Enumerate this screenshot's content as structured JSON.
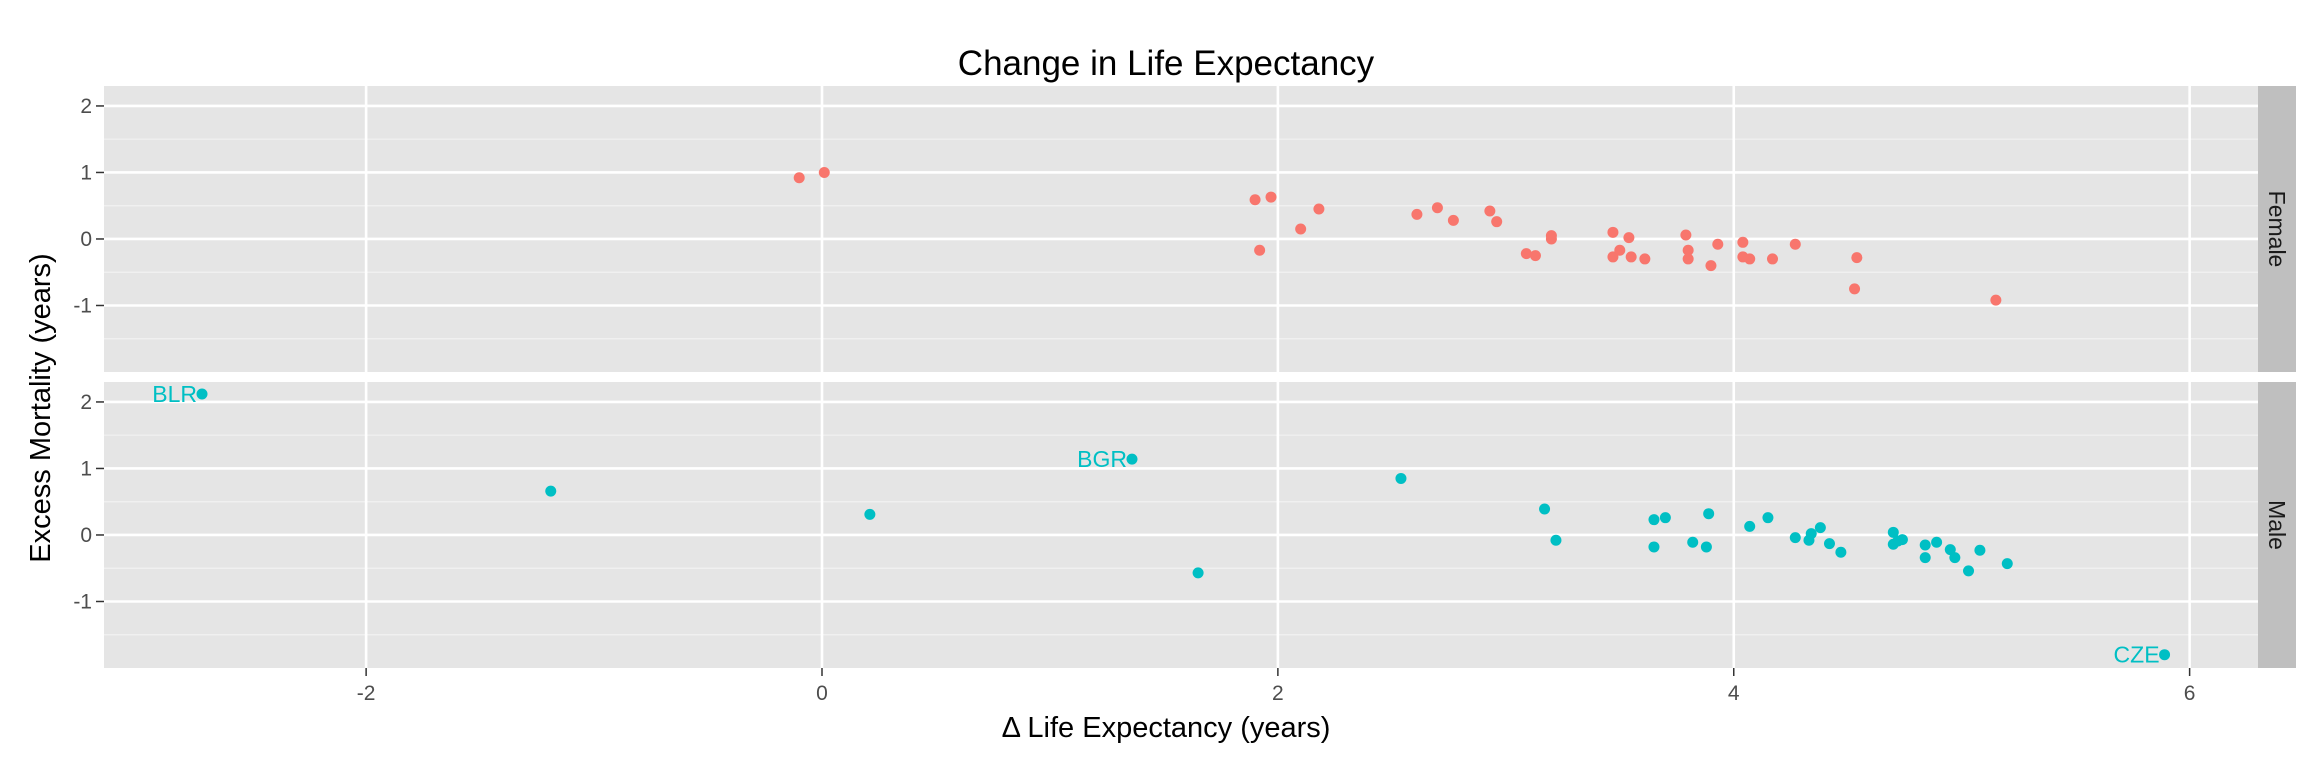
{
  "chart_data": {
    "type": "scatter",
    "title": "Change in Life Expectancy",
    "xlabel": "Δ Life Expectancy (years)",
    "ylabel": "Excess Mortality (years)",
    "xlim": [
      -3.15,
      6.3
    ],
    "ylim": [
      -2.0,
      2.3
    ],
    "x_ticks": [
      -2,
      0,
      2,
      4,
      6
    ],
    "y_ticks": [
      -1,
      0,
      1,
      2
    ],
    "grid": true,
    "facets": [
      "Female",
      "Male"
    ],
    "series": [
      {
        "name": "Female",
        "color": "#F8766D",
        "points": [
          {
            "x": -0.1,
            "y": 0.92
          },
          {
            "x": 0.01,
            "y": 1.0
          },
          {
            "x": 1.9,
            "y": 0.59
          },
          {
            "x": 1.97,
            "y": 0.63
          },
          {
            "x": 1.92,
            "y": -0.17
          },
          {
            "x": 2.1,
            "y": 0.15
          },
          {
            "x": 2.18,
            "y": 0.45
          },
          {
            "x": 2.61,
            "y": 0.37
          },
          {
            "x": 2.7,
            "y": 0.47
          },
          {
            "x": 2.77,
            "y": 0.28
          },
          {
            "x": 2.93,
            "y": 0.42
          },
          {
            "x": 2.96,
            "y": 0.26
          },
          {
            "x": 3.09,
            "y": -0.22
          },
          {
            "x": 3.13,
            "y": -0.25
          },
          {
            "x": 3.2,
            "y": 0.05
          },
          {
            "x": 3.2,
            "y": 0.0
          },
          {
            "x": 3.47,
            "y": 0.1
          },
          {
            "x": 3.47,
            "y": -0.27
          },
          {
            "x": 3.5,
            "y": -0.17
          },
          {
            "x": 3.54,
            "y": 0.02
          },
          {
            "x": 3.55,
            "y": -0.27
          },
          {
            "x": 3.61,
            "y": -0.3
          },
          {
            "x": 3.79,
            "y": 0.06
          },
          {
            "x": 3.8,
            "y": -0.17
          },
          {
            "x": 3.8,
            "y": -0.3
          },
          {
            "x": 3.9,
            "y": -0.4
          },
          {
            "x": 3.93,
            "y": -0.08
          },
          {
            "x": 4.04,
            "y": -0.05
          },
          {
            "x": 4.04,
            "y": -0.27
          },
          {
            "x": 4.07,
            "y": -0.3
          },
          {
            "x": 4.17,
            "y": -0.3
          },
          {
            "x": 4.27,
            "y": -0.08
          },
          {
            "x": 4.53,
            "y": -0.75
          },
          {
            "x": 4.54,
            "y": -0.28
          },
          {
            "x": 5.15,
            "y": -0.92
          }
        ]
      },
      {
        "name": "Male",
        "color": "#00BFC4",
        "points": [
          {
            "x": -2.72,
            "y": 2.12,
            "label": "BLR"
          },
          {
            "x": -1.19,
            "y": 0.66
          },
          {
            "x": 0.21,
            "y": 0.31
          },
          {
            "x": 1.36,
            "y": 1.14,
            "label": "BGR"
          },
          {
            "x": 1.65,
            "y": -0.57
          },
          {
            "x": 2.54,
            "y": 0.85
          },
          {
            "x": 3.17,
            "y": 0.39
          },
          {
            "x": 3.22,
            "y": -0.08
          },
          {
            "x": 3.65,
            "y": 0.23
          },
          {
            "x": 3.65,
            "y": -0.18
          },
          {
            "x": 3.7,
            "y": 0.26
          },
          {
            "x": 3.82,
            "y": -0.11
          },
          {
            "x": 3.88,
            "y": -0.18
          },
          {
            "x": 3.89,
            "y": 0.32
          },
          {
            "x": 4.07,
            "y": 0.13
          },
          {
            "x": 4.15,
            "y": 0.26
          },
          {
            "x": 4.27,
            "y": -0.04
          },
          {
            "x": 4.33,
            "y": -0.08
          },
          {
            "x": 4.34,
            "y": 0.02
          },
          {
            "x": 4.38,
            "y": 0.11
          },
          {
            "x": 4.42,
            "y": -0.13
          },
          {
            "x": 4.47,
            "y": -0.26
          },
          {
            "x": 4.7,
            "y": 0.04
          },
          {
            "x": 4.7,
            "y": -0.14
          },
          {
            "x": 4.72,
            "y": -0.09
          },
          {
            "x": 4.74,
            "y": -0.07
          },
          {
            "x": 4.84,
            "y": -0.15
          },
          {
            "x": 4.84,
            "y": -0.34
          },
          {
            "x": 4.89,
            "y": -0.11
          },
          {
            "x": 4.95,
            "y": -0.22
          },
          {
            "x": 4.97,
            "y": -0.34
          },
          {
            "x": 5.03,
            "y": -0.54
          },
          {
            "x": 5.08,
            "y": -0.23
          },
          {
            "x": 5.2,
            "y": -0.43
          },
          {
            "x": 5.89,
            "y": -1.8,
            "label": "CZE"
          }
        ]
      }
    ]
  }
}
